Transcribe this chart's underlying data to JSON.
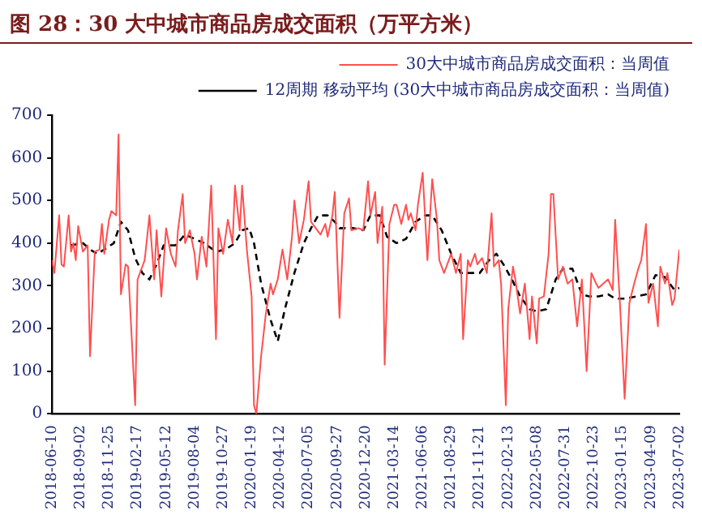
{
  "chart_data": {
    "type": "line",
    "title": "图 28：30 大中城市商品房成交面积（万平方米）",
    "xlim": [
      "2018-06-10",
      "2023-07-02"
    ],
    "xticks": [
      "2018-06-10",
      "2018-09-02",
      "2018-11-25",
      "2019-02-17",
      "2019-05-12",
      "2019-08-04",
      "2019-10-27",
      "2020-01-19",
      "2020-04-12",
      "2020-07-05",
      "2020-09-27",
      "2020-12-20",
      "2021-03-14",
      "2021-06-06",
      "2021-08-29",
      "2021-11-21",
      "2022-02-13",
      "2022-05-08",
      "2022-07-31",
      "2022-10-23",
      "2023-01-15",
      "2023-04-09",
      "2023-07-02"
    ],
    "ylim": [
      0,
      700
    ],
    "yticks": [
      0,
      100,
      200,
      300,
      400,
      500,
      600,
      700
    ],
    "legend": "top",
    "marker": "none",
    "grid": false,
    "series": [
      {
        "name": "30大中城市商品房成交面积：当周值",
        "color": "#ff4f4f",
        "line_style": "solid",
        "x": [
          "2018-06-10",
          "2018-06-17",
          "2018-07-01",
          "2018-07-08",
          "2018-07-15",
          "2018-07-29",
          "2018-08-05",
          "2018-08-12",
          "2018-08-19",
          "2018-08-26",
          "2018-09-09",
          "2018-09-23",
          "2018-09-30",
          "2018-10-14",
          "2018-10-28",
          "2018-11-04",
          "2018-11-11",
          "2018-11-25",
          "2018-12-02",
          "2018-12-16",
          "2018-12-23",
          "2018-12-30",
          "2019-01-13",
          "2019-01-20",
          "2019-02-10",
          "2019-02-17",
          "2019-03-03",
          "2019-03-10",
          "2019-03-24",
          "2019-04-07",
          "2019-04-14",
          "2019-04-28",
          "2019-05-12",
          "2019-05-26",
          "2019-06-09",
          "2019-06-16",
          "2019-06-30",
          "2019-07-07",
          "2019-07-21",
          "2019-08-04",
          "2019-08-11",
          "2019-08-25",
          "2019-09-08",
          "2019-09-22",
          "2019-10-06",
          "2019-10-13",
          "2019-10-27",
          "2019-11-10",
          "2019-11-24",
          "2019-12-01",
          "2019-12-15",
          "2019-12-22",
          "2020-01-05",
          "2020-01-19",
          "2020-01-26",
          "2020-02-02",
          "2020-02-16",
          "2020-03-01",
          "2020-03-15",
          "2020-03-22",
          "2020-04-05",
          "2020-04-19",
          "2020-05-03",
          "2020-05-17",
          "2020-05-24",
          "2020-06-07",
          "2020-06-21",
          "2020-07-05",
          "2020-07-12",
          "2020-07-26",
          "2020-08-09",
          "2020-08-23",
          "2020-08-30",
          "2020-09-13",
          "2020-09-20",
          "2020-10-04",
          "2020-10-18",
          "2020-11-01",
          "2020-11-08",
          "2020-11-29",
          "2020-12-13",
          "2020-12-27",
          "2021-01-03",
          "2021-01-17",
          "2021-01-24",
          "2021-02-07",
          "2021-02-14",
          "2021-02-28",
          "2021-03-14",
          "2021-03-21",
          "2021-04-04",
          "2021-04-18",
          "2021-04-25",
          "2021-05-02",
          "2021-05-16",
          "2021-05-23",
          "2021-06-06",
          "2021-06-20",
          "2021-07-04",
          "2021-07-18",
          "2021-07-25",
          "2021-08-08",
          "2021-08-15",
          "2021-08-29",
          "2021-09-12",
          "2021-09-26",
          "2021-10-03",
          "2021-10-17",
          "2021-10-24",
          "2021-11-07",
          "2021-11-14",
          "2021-11-28",
          "2021-12-12",
          "2021-12-26",
          "2022-01-02",
          "2022-01-16",
          "2022-01-23",
          "2022-02-06",
          "2022-02-13",
          "2022-02-27",
          "2022-03-06",
          "2022-03-20",
          "2022-04-03",
          "2022-04-17",
          "2022-04-24",
          "2022-05-08",
          "2022-05-15",
          "2022-05-29",
          "2022-06-12",
          "2022-06-19",
          "2022-06-26",
          "2022-07-10",
          "2022-07-24",
          "2022-08-07",
          "2022-08-21",
          "2022-09-04",
          "2022-09-18",
          "2022-10-02",
          "2022-10-16",
          "2022-10-30",
          "2022-11-06",
          "2022-11-20",
          "2022-12-04",
          "2022-12-18",
          "2022-12-25",
          "2023-01-08",
          "2023-01-22",
          "2023-02-05",
          "2023-02-19",
          "2023-03-05",
          "2023-03-12",
          "2023-03-26",
          "2023-04-02",
          "2023-04-16",
          "2023-04-30",
          "2023-05-07",
          "2023-05-21",
          "2023-05-28",
          "2023-06-11",
          "2023-06-18",
          "2023-07-02"
        ],
        "values": [
          360,
          330,
          465,
          350,
          345,
          465,
          380,
          400,
          360,
          440,
          380,
          395,
          135,
          380,
          385,
          445,
          375,
          455,
          475,
          465,
          655,
          280,
          350,
          345,
          20,
          315,
          345,
          360,
          465,
          315,
          430,
          275,
          435,
          375,
          345,
          430,
          515,
          400,
          430,
          375,
          315,
          415,
          345,
          535,
          175,
          435,
          375,
          455,
          400,
          535,
          430,
          535,
          385,
          275,
          20,
          0,
          135,
          235,
          305,
          280,
          315,
          385,
          315,
          415,
          500,
          400,
          455,
          545,
          450,
          435,
          420,
          445,
          415,
          465,
          520,
          225,
          470,
          505,
          430,
          435,
          430,
          545,
          465,
          520,
          400,
          485,
          115,
          445,
          490,
          490,
          445,
          490,
          455,
          470,
          430,
          490,
          565,
          360,
          550,
          455,
          360,
          330,
          345,
          375,
          330,
          375,
          175,
          360,
          345,
          375,
          350,
          365,
          330,
          470,
          345,
          360,
          305,
          20,
          245,
          345,
          315,
          235,
          305,
          175,
          275,
          165,
          270,
          275,
          375,
          515,
          515,
          315,
          345,
          305,
          315,
          205,
          315,
          100,
          330,
          305,
          295,
          305,
          315,
          290,
          455,
          260,
          35,
          260,
          305,
          345,
          360,
          445,
          260,
          305,
          205,
          345,
          305,
          330,
          255,
          270,
          385
        ]
      },
      {
        "name": "12周期 移动平均 (30大中城市商品房成交面积：当周值)",
        "color": "#000000",
        "line_style": "dashed",
        "x": [
          "2018-08-05",
          "2018-09-09",
          "2018-09-30",
          "2018-10-21",
          "2018-11-11",
          "2018-12-09",
          "2018-12-30",
          "2019-01-20",
          "2019-02-10",
          "2019-03-03",
          "2019-03-24",
          "2019-04-14",
          "2019-05-05",
          "2019-06-09",
          "2019-07-07",
          "2019-08-04",
          "2019-09-01",
          "2019-10-06",
          "2019-11-03",
          "2019-12-01",
          "2019-12-22",
          "2020-01-12",
          "2020-01-26",
          "2020-02-16",
          "2020-03-15",
          "2020-04-05",
          "2020-04-26",
          "2020-05-24",
          "2020-06-21",
          "2020-07-12",
          "2020-08-02",
          "2020-08-30",
          "2020-09-20",
          "2020-10-04",
          "2020-11-15",
          "2020-12-13",
          "2021-01-03",
          "2021-01-31",
          "2021-02-21",
          "2021-03-21",
          "2021-04-18",
          "2021-05-16",
          "2021-06-13",
          "2021-07-04",
          "2021-08-01",
          "2021-08-29",
          "2021-09-26",
          "2021-10-24",
          "2021-11-21",
          "2021-12-19",
          "2022-01-09",
          "2022-01-30",
          "2022-02-27",
          "2022-03-20",
          "2022-04-17",
          "2022-05-08",
          "2022-06-05",
          "2022-07-03",
          "2022-07-24",
          "2022-08-21",
          "2022-09-18",
          "2022-10-09",
          "2022-11-06",
          "2022-12-04",
          "2022-12-25",
          "2023-01-22",
          "2023-02-26",
          "2023-03-26",
          "2023-04-23",
          "2023-05-21",
          "2023-06-18",
          "2023-07-02"
        ],
        "values": [
          395,
          400,
          385,
          375,
          385,
          400,
          450,
          430,
          365,
          330,
          315,
          350,
          395,
          395,
          420,
          410,
          400,
          380,
          385,
          400,
          430,
          435,
          400,
          305,
          220,
          170,
          245,
          330,
          400,
          435,
          465,
          465,
          450,
          435,
          435,
          430,
          465,
          465,
          415,
          400,
          410,
          450,
          465,
          465,
          430,
          375,
          330,
          330,
          330,
          360,
          375,
          350,
          310,
          275,
          245,
          240,
          245,
          315,
          340,
          340,
          280,
          275,
          275,
          280,
          270,
          270,
          275,
          280,
          325,
          320,
          290,
          295
        ]
      }
    ]
  }
}
